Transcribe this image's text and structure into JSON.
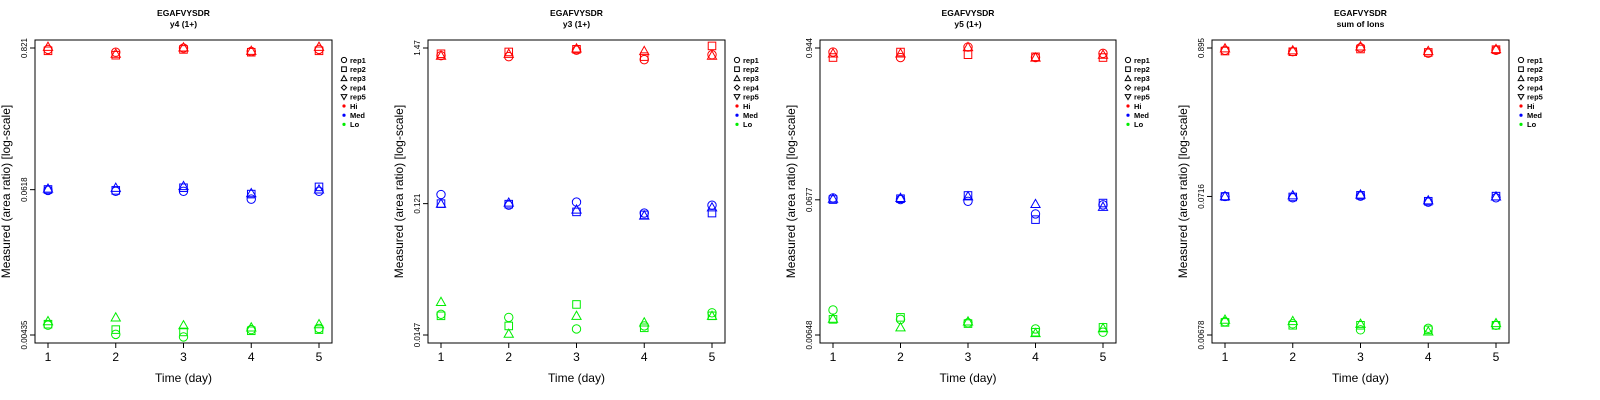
{
  "chart_data": [
    {
      "type": "scatter",
      "title": "EGAFVYSDR",
      "subtitle": "y4 (1+)",
      "xlabel": "Time (day)",
      "ylabel": "Measured (area ratio) [log-scale]",
      "yscale": "log",
      "ylim": [
        0.00435,
        0.821
      ],
      "yticks": [
        0.00435,
        0.0618,
        0.821
      ],
      "ytick_labels": [
        "0.00435",
        "0.0618",
        "0.821"
      ],
      "x": [
        1,
        2,
        3,
        4,
        5
      ],
      "series": [
        {
          "level": "Hi",
          "replicate": "rep1",
          "values": [
            0.8,
            0.76,
            0.82,
            0.77,
            0.8
          ]
        },
        {
          "level": "Hi",
          "replicate": "rep2",
          "values": [
            0.78,
            0.72,
            0.8,
            0.76,
            0.78
          ]
        },
        {
          "level": "Hi",
          "replicate": "rep3",
          "values": [
            0.84,
            0.74,
            0.83,
            0.78,
            0.84
          ]
        },
        {
          "level": "Med",
          "replicate": "rep1",
          "values": [
            0.061,
            0.06,
            0.06,
            0.052,
            0.06
          ]
        },
        {
          "level": "Med",
          "replicate": "rep2",
          "values": [
            0.062,
            0.061,
            0.064,
            0.057,
            0.065
          ]
        },
        {
          "level": "Med",
          "replicate": "rep3",
          "values": [
            0.063,
            0.064,
            0.066,
            0.058,
            0.062
          ]
        },
        {
          "level": "Lo",
          "replicate": "rep1",
          "values": [
            0.0052,
            0.0044,
            0.0042,
            0.0048,
            0.0049
          ]
        },
        {
          "level": "Lo",
          "replicate": "rep2",
          "values": [
            0.0053,
            0.0048,
            0.0046,
            0.0047,
            0.0048
          ]
        },
        {
          "level": "Lo",
          "replicate": "rep3",
          "values": [
            0.0056,
            0.006,
            0.0052,
            0.005,
            0.0053
          ]
        }
      ]
    },
    {
      "type": "scatter",
      "title": "EGAFVYSDR",
      "subtitle": "y3 (1+)",
      "xlabel": "Time (day)",
      "ylabel": "Measured (area ratio) [log-scale]",
      "yscale": "log",
      "ylim": [
        0.0147,
        1.47
      ],
      "yticks": [
        0.0147,
        0.121,
        1.47
      ],
      "ytick_labels": [
        "0.0147",
        "0.121",
        "1.47"
      ],
      "x": [
        1,
        2,
        3,
        4,
        5
      ],
      "series": [
        {
          "level": "Hi",
          "replicate": "rep1",
          "values": [
            1.3,
            1.28,
            1.42,
            1.22,
            1.32
          ]
        },
        {
          "level": "Hi",
          "replicate": "rep2",
          "values": [
            1.34,
            1.38,
            1.44,
            1.28,
            1.52
          ]
        },
        {
          "level": "Hi",
          "replicate": "rep3",
          "values": [
            1.3,
            1.34,
            1.46,
            1.4,
            1.3
          ]
        },
        {
          "level": "Med",
          "replicate": "rep1",
          "values": [
            0.14,
            0.118,
            0.124,
            0.104,
            0.118
          ]
        },
        {
          "level": "Med",
          "replicate": "rep2",
          "values": [
            0.121,
            0.12,
            0.106,
            0.101,
            0.104
          ]
        },
        {
          "level": "Med",
          "replicate": "rep3",
          "values": [
            0.121,
            0.123,
            0.11,
            0.1,
            0.114
          ]
        },
        {
          "level": "Lo",
          "replicate": "rep1",
          "values": [
            0.0205,
            0.0195,
            0.0162,
            0.017,
            0.021
          ]
        },
        {
          "level": "Lo",
          "replicate": "rep2",
          "values": [
            0.02,
            0.017,
            0.024,
            0.0165,
            0.02
          ]
        },
        {
          "level": "Lo",
          "replicate": "rep3",
          "values": [
            0.025,
            0.015,
            0.02,
            0.018,
            0.02
          ]
        }
      ]
    },
    {
      "type": "scatter",
      "title": "EGAFVYSDR",
      "subtitle": "y5 (1+)",
      "xlabel": "Time (day)",
      "ylabel": "Measured (area ratio) [log-scale]",
      "yscale": "log",
      "ylim": [
        0.00648,
        0.944
      ],
      "yticks": [
        0.00648,
        0.0677,
        0.944
      ],
      "ytick_labels": [
        "0.00648",
        "0.0677",
        "0.944"
      ],
      "x": [
        1,
        2,
        3,
        4,
        5
      ],
      "series": [
        {
          "level": "Hi",
          "replicate": "rep1",
          "values": [
            0.88,
            0.8,
            0.96,
            0.8,
            0.86
          ]
        },
        {
          "level": "Hi",
          "replicate": "rep2",
          "values": [
            0.8,
            0.88,
            0.84,
            0.81,
            0.8
          ]
        },
        {
          "level": "Hi",
          "replicate": "rep3",
          "values": [
            0.86,
            0.86,
            0.96,
            0.8,
            0.84
          ]
        },
        {
          "level": "Med",
          "replicate": "rep1",
          "values": [
            0.07,
            0.068,
            0.066,
            0.053,
            0.062
          ]
        },
        {
          "level": "Med",
          "replicate": "rep2",
          "values": [
            0.068,
            0.069,
            0.073,
            0.048,
            0.064
          ]
        },
        {
          "level": "Med",
          "replicate": "rep3",
          "values": [
            0.069,
            0.07,
            0.072,
            0.063,
            0.06
          ]
        },
        {
          "level": "Lo",
          "replicate": "rep1",
          "values": [
            0.01,
            0.0085,
            0.008,
            0.0072,
            0.0068
          ]
        },
        {
          "level": "Lo",
          "replicate": "rep2",
          "values": [
            0.0085,
            0.0088,
            0.0079,
            0.0068,
            0.0074
          ]
        },
        {
          "level": "Lo",
          "replicate": "rep3",
          "values": [
            0.0086,
            0.0074,
            0.0082,
            0.0067,
            0.0073
          ]
        }
      ]
    },
    {
      "type": "scatter",
      "title": "EGAFVYSDR",
      "subtitle": "sum of Ions",
      "xlabel": "Time (day)",
      "ylabel": "Measured (area ratio) [log-scale]",
      "yscale": "log",
      "ylim": [
        0.00678,
        0.895
      ],
      "yticks": [
        0.00678,
        0.0716,
        0.895
      ],
      "ytick_labels": [
        "0.00678",
        "0.0716",
        "0.895"
      ],
      "x": [
        1,
        2,
        3,
        4,
        5
      ],
      "series": [
        {
          "level": "Hi",
          "replicate": "rep1",
          "values": [
            0.86,
            0.84,
            0.9,
            0.82,
            0.86
          ]
        },
        {
          "level": "Hi",
          "replicate": "rep2",
          "values": [
            0.85,
            0.84,
            0.88,
            0.83,
            0.87
          ]
        },
        {
          "level": "Hi",
          "replicate": "rep3",
          "values": [
            0.89,
            0.86,
            0.92,
            0.85,
            0.88
          ]
        },
        {
          "level": "Med",
          "replicate": "rep1",
          "values": [
            0.0716,
            0.07,
            0.072,
            0.065,
            0.07
          ]
        },
        {
          "level": "Med",
          "replicate": "rep2",
          "values": [
            0.0716,
            0.071,
            0.073,
            0.066,
            0.072
          ]
        },
        {
          "level": "Med",
          "replicate": "rep3",
          "values": [
            0.072,
            0.073,
            0.074,
            0.067,
            0.0716
          ]
        },
        {
          "level": "Lo",
          "replicate": "rep1",
          "values": [
            0.0085,
            0.0082,
            0.0074,
            0.0076,
            0.008
          ]
        },
        {
          "level": "Lo",
          "replicate": "rep2",
          "values": [
            0.0084,
            0.008,
            0.008,
            0.0074,
            0.008
          ]
        },
        {
          "level": "Lo",
          "replicate": "rep3",
          "values": [
            0.0088,
            0.0086,
            0.0082,
            0.0072,
            0.0083
          ]
        }
      ]
    }
  ],
  "legend": {
    "placement": "right",
    "entries": [
      {
        "label": "rep1",
        "marker": "circle"
      },
      {
        "label": "rep2",
        "marker": "square"
      },
      {
        "label": "rep3",
        "marker": "triangle-up"
      },
      {
        "label": "rep4",
        "marker": "diamond"
      },
      {
        "label": "rep5",
        "marker": "triangle-down"
      },
      {
        "label": "Hi",
        "color_key": "Hi"
      },
      {
        "label": "Med",
        "color_key": "Med"
      },
      {
        "label": "Lo",
        "color_key": "Lo"
      }
    ]
  },
  "colors": {
    "Hi": "#ff0000",
    "Med": "#0000ff",
    "Lo": "#00ee00",
    "axis": "#000000"
  }
}
